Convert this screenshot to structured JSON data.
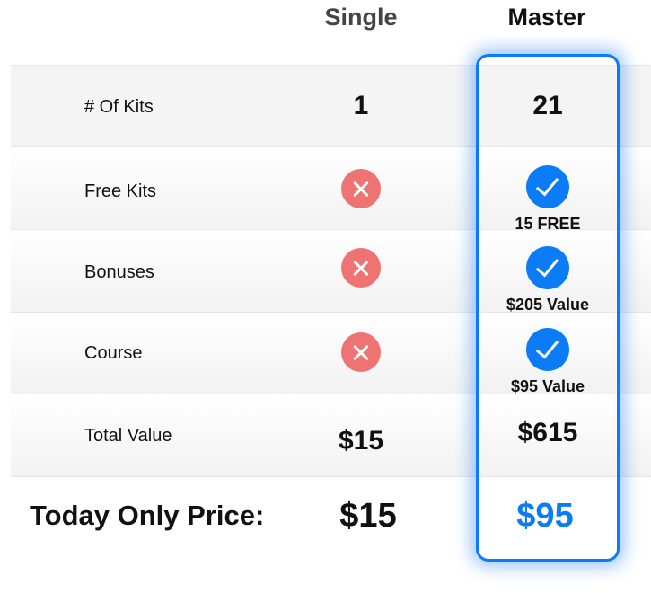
{
  "columns": {
    "single": "Single",
    "master": "Master"
  },
  "rows": [
    {
      "label": "# Of Kits",
      "single": "1",
      "master": "21"
    },
    {
      "label": "Free Kits",
      "single_icon": "x-icon",
      "master_icon": "check-icon",
      "master_note": "15 FREE"
    },
    {
      "label": "Bonuses",
      "single_icon": "x-icon",
      "master_icon": "check-icon",
      "master_note": "$205 Value"
    },
    {
      "label": "Course",
      "single_icon": "x-icon",
      "master_icon": "check-icon",
      "master_note": "$95 Value"
    },
    {
      "label": "Total Value",
      "single": "$15",
      "master": "$615"
    }
  ],
  "price": {
    "label": "Today Only Price:",
    "single": "$15",
    "master": "$95"
  },
  "colors": {
    "accent": "#0b7cf5",
    "cross": "#ef7373"
  }
}
